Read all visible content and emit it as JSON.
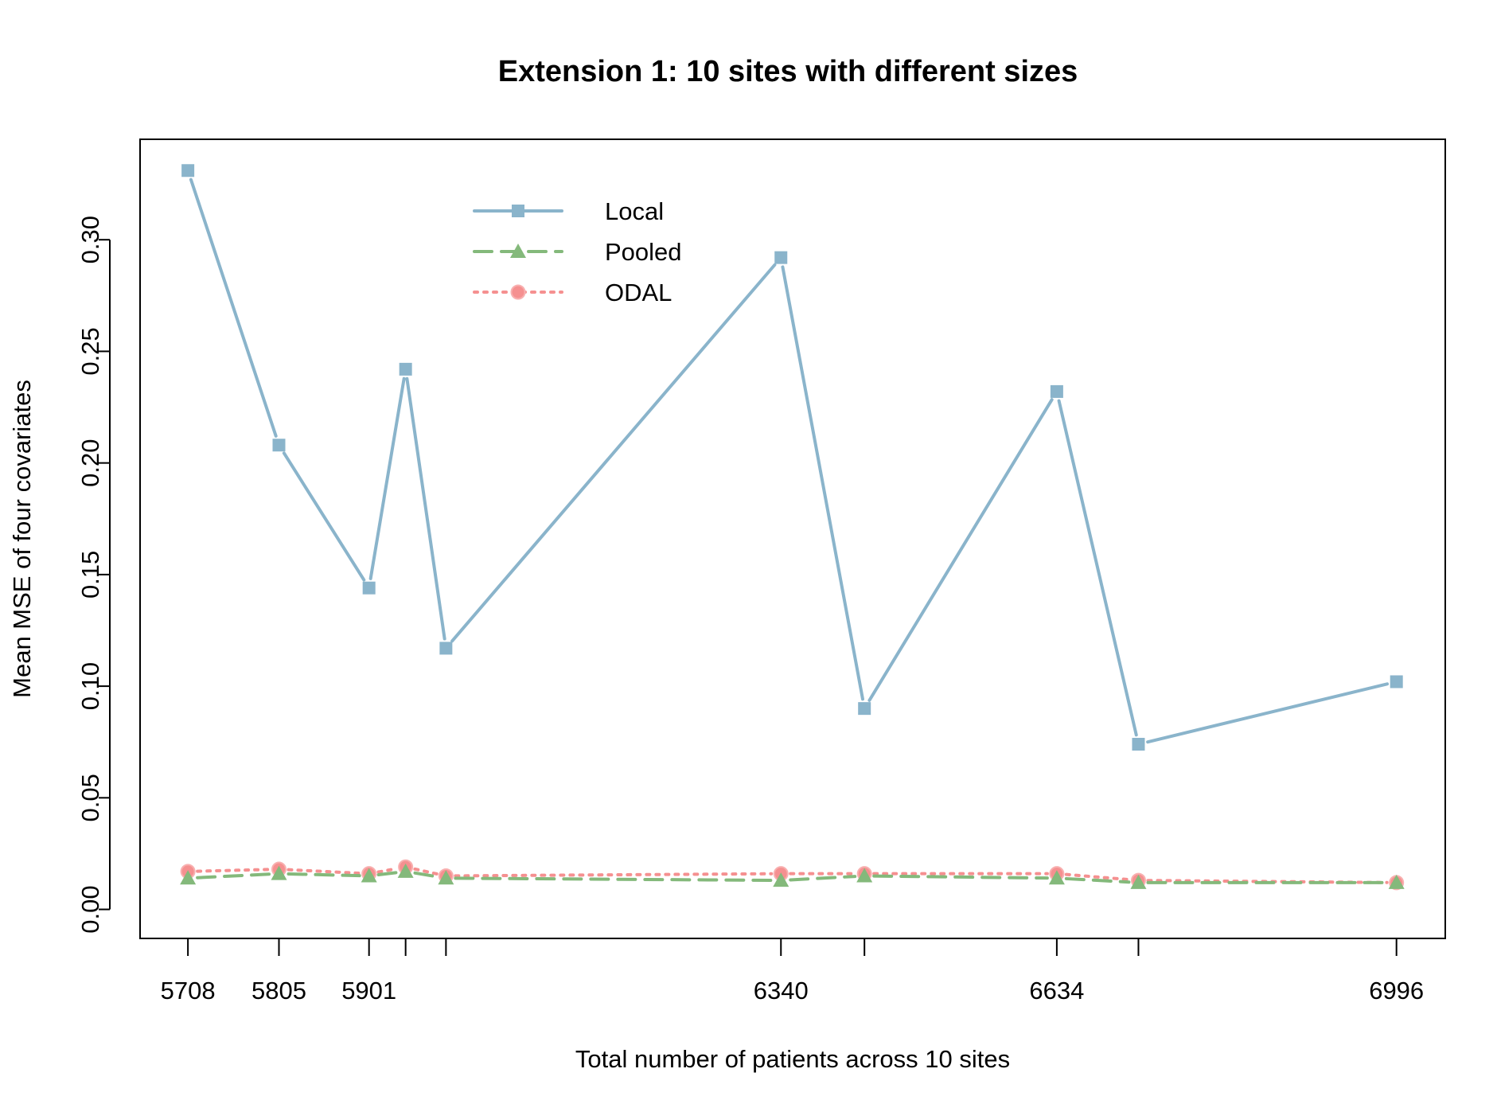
{
  "chart_data": {
    "type": "line",
    "title": "Extension 1: 10 sites with different sizes",
    "xlabel": "Total number of patients across 10 sites",
    "ylabel": "Mean MSE of four covariates",
    "x": [
      5708,
      5805,
      5901,
      5940,
      5983,
      6340,
      6429,
      6634,
      6721,
      6996
    ],
    "xlim": [
      5657,
      7048
    ],
    "ylim": [
      -0.013,
      0.345
    ],
    "x_tick_values": [
      5708,
      5805,
      5901,
      5940,
      5983,
      6340,
      6429,
      6634,
      6721,
      6996
    ],
    "x_tick_labels": [
      "5708",
      "5805",
      "5901",
      "",
      "",
      "6340",
      "",
      "6634",
      "",
      "6996"
    ],
    "y_tick_values": [
      0.0,
      0.05,
      0.1,
      0.15,
      0.2,
      0.25,
      0.3
    ],
    "y_tick_labels": [
      "0.00",
      "0.05",
      "0.10",
      "0.15",
      "0.20",
      "0.25",
      "0.30"
    ],
    "grid": false,
    "legend_position": "top-center",
    "series": [
      {
        "name": "Local",
        "key": "local",
        "color": "#8ab4cb",
        "line_style": "solid",
        "marker": "square",
        "values": [
          0.331,
          0.208,
          0.144,
          0.242,
          0.117,
          0.292,
          0.09,
          0.232,
          0.074,
          0.102
        ]
      },
      {
        "name": "Pooled",
        "key": "pooled",
        "color": "#84b97b",
        "line_style": "dashed",
        "marker": "triangle",
        "values": [
          0.014,
          0.016,
          0.015,
          0.017,
          0.014,
          0.013,
          0.015,
          0.014,
          0.012,
          0.012
        ]
      },
      {
        "name": "ODAL",
        "key": "odal",
        "color": "#f59090",
        "line_style": "dotted",
        "marker": "circle",
        "values": [
          0.017,
          0.018,
          0.016,
          0.019,
          0.015,
          0.016,
          0.016,
          0.016,
          0.013,
          0.012
        ]
      }
    ]
  }
}
